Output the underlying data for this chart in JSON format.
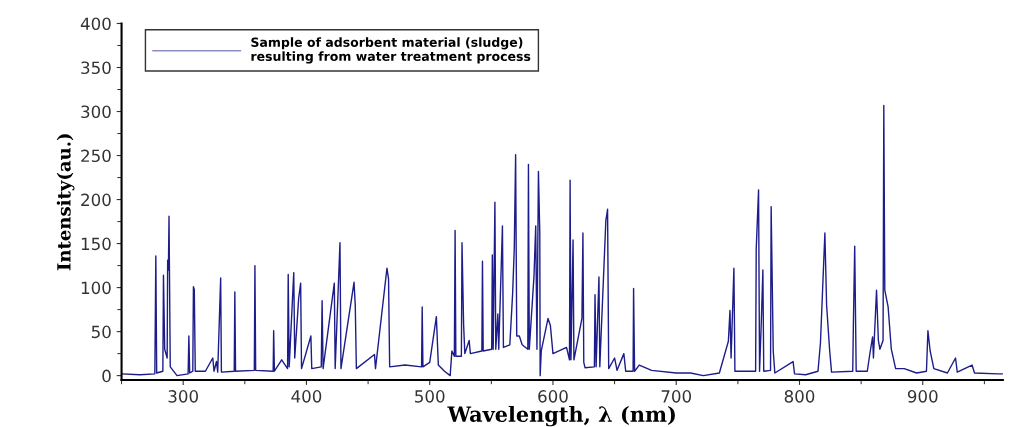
{
  "chart_data": {
    "type": "line",
    "xlabel": "Wavelength, λ (nm)",
    "ylabel": "Intensity(au.)",
    "xlim": [
      250,
      965
    ],
    "ylim": [
      -5,
      400
    ],
    "xticks": [
      300,
      400,
      500,
      600,
      700,
      800,
      900
    ],
    "yticks": [
      0,
      50,
      100,
      150,
      200,
      250,
      300,
      350,
      400
    ],
    "grid": false,
    "legend": "top left",
    "marker": "none",
    "line_style": "solid",
    "series": [
      {
        "name": "Sample of adsorbent material (sludge)\nresulting from water treatment process",
        "color": "#1c1c8a",
        "x": [
          250,
          265,
          277,
          277.8,
          278.5,
          283.5,
          284,
          285,
          287,
          287.4,
          288,
          288.5,
          289.5,
          295,
          304,
          304.6,
          305.3,
          307.8,
          308.3,
          309,
          309.8,
          318,
          324,
          325,
          327,
          328,
          330.4,
          331,
          341.4,
          341.9,
          342.5,
          357.7,
          358.2,
          358.8,
          373,
          373.4,
          374,
          379.9,
          384.7,
          385.2,
          386,
          389.7,
          390.5,
          393.7,
          395.3,
          396,
          403.6,
          404.3,
          412,
          412.7,
          413.5,
          422.6,
          423.3,
          427.2,
          428,
          438.6,
          439.6,
          440.5,
          455.2,
          456,
          465.3,
          466.6,
          467.5,
          480,
          493.4,
          493.9,
          494.5,
          500,
          505.4,
          507,
          512,
          516.6,
          518,
          520,
          520.6,
          521.2,
          525.7,
          526.2,
          527.5,
          528.5,
          532,
          533,
          542.3,
          542.8,
          543.4,
          550.3,
          550.8,
          551.5,
          552.9,
          553.6,
          555.3,
          556,
          559,
          559.8,
          565,
          567.3,
          568.6,
          569.7,
          570.6,
          572.7,
          575,
          579.6,
          580.1,
          580.8,
          584.6,
          586,
          587,
          588.2,
          589.3,
          589.6,
          590.5,
          596,
          597.9,
          600,
          611,
          613.4,
          613.9,
          614.6,
          616.3,
          617,
          623.5,
          624.3,
          625,
          626,
          633.6,
          634.1,
          635,
          637.3,
          638,
          642.9,
          644.3,
          645.2,
          650,
          652,
          657.5,
          659,
          665,
          665.4,
          666.2,
          670,
          680,
          700,
          711.6,
          722,
          735,
          742.3,
          743.6,
          744.5,
          746.8,
          747.6,
          764.4,
          764.9,
          766.8,
          767.6,
          769,
          770.3,
          771,
          776.5,
          777,
          778.7,
          780,
          794.8,
          796,
          805,
          815,
          817,
          820.6,
          822,
          824.4,
          826,
          843.2,
          843.7,
          844.8,
          846,
          855,
          857,
          859.3,
          860,
          862.5,
          864,
          865.2,
          867.8,
          868.4,
          869.2,
          871.9,
          874.5,
          878,
          885,
          895,
          903,
          904.2,
          906,
          909,
          920,
          926.6,
          928,
          940,
          942,
          961,
          965
        ],
        "values": [
          2,
          1,
          2,
          136,
          3,
          5,
          114,
          30,
          20,
          131,
          120,
          181,
          10,
          0,
          2,
          45,
          3,
          5,
          101,
          98,
          5,
          5,
          20,
          5,
          16,
          4,
          111,
          4,
          5,
          95,
          5,
          6,
          125,
          6,
          5,
          51,
          5,
          18,
          8,
          115,
          10,
          117,
          20,
          88,
          105,
          8,
          45,
          8,
          10,
          85,
          8,
          105,
          8,
          151,
          8,
          106,
          80,
          8,
          24,
          8,
          122,
          110,
          10,
          12,
          10,
          78,
          10,
          15,
          67,
          12,
          5,
          0,
          28,
          22,
          165,
          22,
          22,
          151,
          58,
          25,
          40,
          25,
          28,
          130,
          28,
          30,
          137,
          30,
          197,
          30,
          70,
          30,
          170,
          32,
          35,
          94,
          144,
          251,
          45,
          45,
          35,
          30,
          240,
          30,
          113,
          170,
          30,
          232,
          163,
          0,
          28,
          65,
          57,
          25,
          32,
          18,
          222,
          18,
          154,
          18,
          65,
          162,
          15,
          9,
          10,
          92,
          10,
          112,
          10,
          176,
          189,
          8,
          20,
          6,
          25,
          5,
          5,
          99,
          5,
          12,
          6,
          3,
          3,
          0,
          3,
          39,
          74,
          20,
          122,
          5,
          5,
          144,
          211,
          5,
          60,
          120,
          5,
          6,
          192,
          28,
          3,
          16,
          2,
          1,
          5,
          37,
          162,
          80,
          30,
          4,
          5,
          56,
          147,
          5,
          5,
          24,
          44,
          20,
          97,
          40,
          30,
          40,
          307,
          97,
          78,
          30,
          8,
          8,
          3,
          5,
          51,
          28,
          8,
          3,
          20,
          4,
          12,
          3,
          2,
          2
        ]
      }
    ]
  }
}
